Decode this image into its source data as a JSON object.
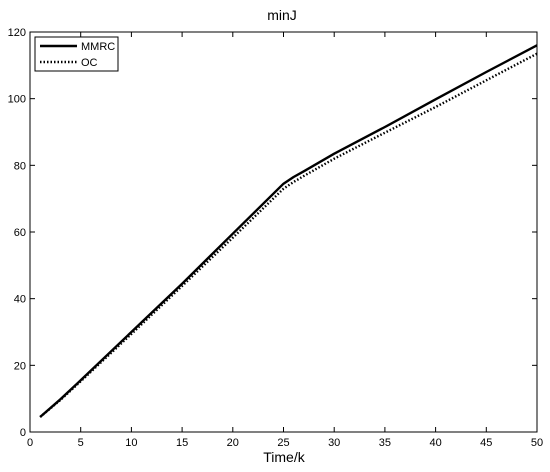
{
  "chart_data": {
    "type": "line",
    "title": "minJ",
    "xlabel": "Time/k",
    "ylabel": "",
    "xlim": [
      0,
      50
    ],
    "ylim": [
      0,
      120
    ],
    "xticks": [
      0,
      5,
      10,
      15,
      20,
      25,
      30,
      35,
      40,
      45,
      50
    ],
    "yticks": [
      0,
      20,
      40,
      60,
      80,
      100,
      120
    ],
    "grid": false,
    "legend_position": "top-left",
    "x": [
      1,
      3,
      5,
      10,
      15,
      20,
      25,
      26,
      27,
      30,
      35,
      40,
      45,
      50
    ],
    "series": [
      {
        "name": "MMRC",
        "style": "solid",
        "color": "#000000",
        "values": [
          4.5,
          9.8,
          15.5,
          30.0,
          44.5,
          59.5,
          74.5,
          76.5,
          78.2,
          83.5,
          91.5,
          99.8,
          108.0,
          116.0
        ]
      },
      {
        "name": "OC",
        "style": "dotted",
        "color": "#000000",
        "values": [
          4.5,
          9.6,
          15.2,
          29.4,
          43.8,
          58.3,
          73.0,
          75.0,
          76.8,
          82.0,
          89.8,
          97.5,
          105.5,
          113.5
        ]
      }
    ]
  }
}
